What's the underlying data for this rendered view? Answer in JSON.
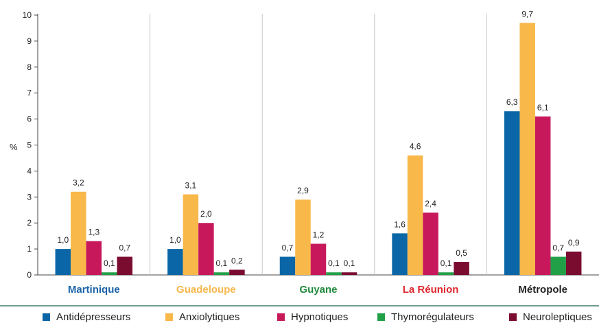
{
  "chart_data": {
    "type": "bar",
    "ylabel": "%",
    "ylim": [
      0,
      10
    ],
    "yticks": [
      "0",
      "1",
      "2",
      "3",
      "4",
      "5",
      "6",
      "7",
      "8",
      "9",
      "10"
    ],
    "categories": [
      "Martinique",
      "Guadeloupe",
      "Guyane",
      "La Réunion",
      "Métropole"
    ],
    "category_colors": [
      "#1a63a8",
      "#f7b64a",
      "#1f8a3b",
      "#e0262c",
      "#222222"
    ],
    "series": [
      {
        "name": "Antidépresseurs",
        "color": "#0a66a6",
        "values": [
          1.0,
          1.0,
          0.7,
          1.6,
          6.3
        ],
        "labels": [
          "1,0",
          "1,0",
          "0,7",
          "1,6",
          "6,3"
        ]
      },
      {
        "name": "Anxiolytiques",
        "color": "#f9b84a",
        "values": [
          3.2,
          3.1,
          2.9,
          4.6,
          9.7
        ],
        "labels": [
          "3,2",
          "3,1",
          "2,9",
          "4,6",
          "9,7"
        ]
      },
      {
        "name": "Hypnotiques",
        "color": "#c8185c",
        "values": [
          1.3,
          2.0,
          1.2,
          2.4,
          6.1
        ],
        "labels": [
          "1,3",
          "2,0",
          "1,2",
          "2,4",
          "6,1"
        ]
      },
      {
        "name": "Thymorégulateurs",
        "color": "#21a048",
        "values": [
          0.1,
          0.1,
          0.1,
          0.1,
          0.7
        ],
        "labels": [
          "0,1",
          "0,1",
          "0,1",
          "0,1",
          "0,7"
        ]
      },
      {
        "name": "Neuroleptiques",
        "color": "#7a0c30",
        "values": [
          0.7,
          0.2,
          0.1,
          0.5,
          0.9
        ],
        "labels": [
          "0,7",
          "0,2",
          "0,1",
          "0,5",
          "0,9"
        ]
      }
    ],
    "grid": false,
    "legend_position": "bottom"
  }
}
